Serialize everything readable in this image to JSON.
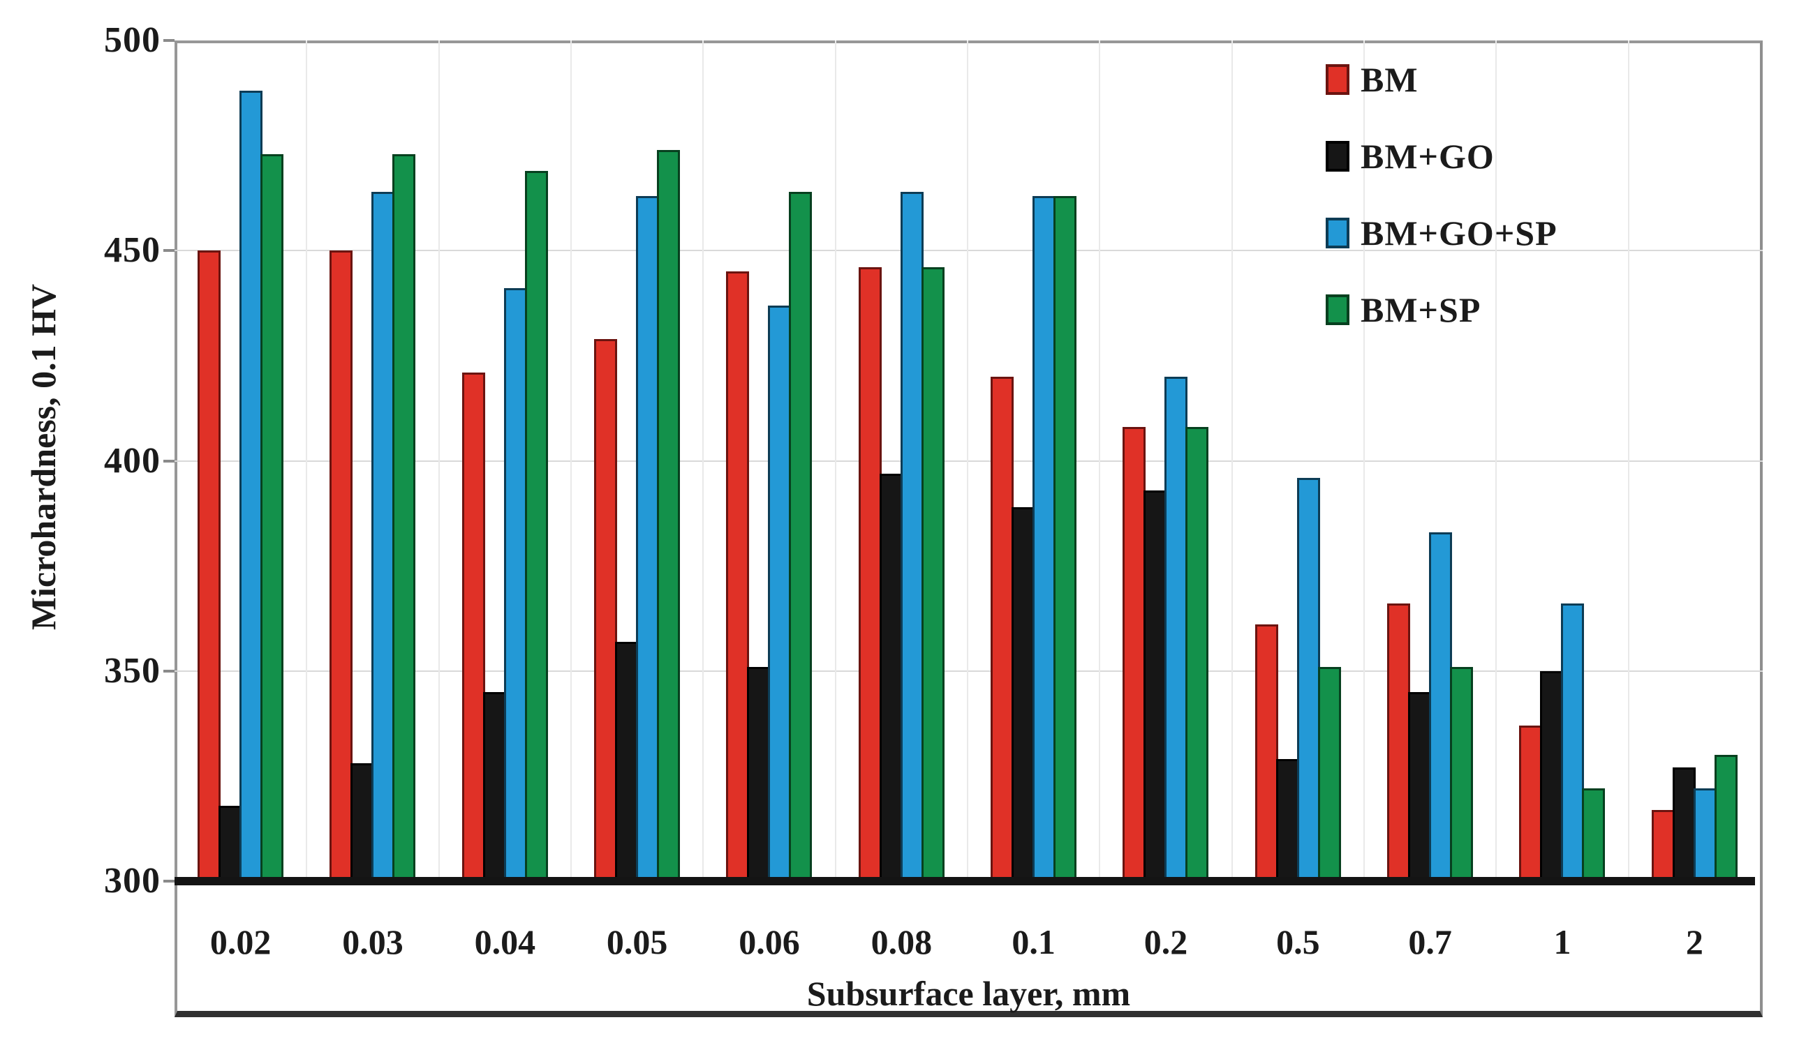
{
  "chart_data": {
    "type": "bar",
    "title": "",
    "xlabel": "Subsurface layer, mm",
    "ylabel": "Microhardness, 0.1 HV",
    "categories": [
      "0.02",
      "0.03",
      "0.04",
      "0.05",
      "0.06",
      "0.08",
      "0.1",
      "0.2",
      "0.5",
      "0.7",
      "1",
      "2"
    ],
    "series": [
      {
        "name": "BM",
        "color": "#e03127",
        "border_color": "#6b1410",
        "values": [
          450,
          450,
          421,
          429,
          445,
          446,
          420,
          408,
          361,
          366,
          337,
          317
        ]
      },
      {
        "name": "BM+GO",
        "color": "#161616",
        "border_color": "#000000",
        "values": [
          318,
          328,
          345,
          357,
          351,
          397,
          389,
          393,
          329,
          345,
          350,
          327
        ]
      },
      {
        "name": "BM+GO+SP",
        "color": "#2399d6",
        "border_color": "#0d3c55",
        "values": [
          488,
          464,
          441,
          463,
          437,
          464,
          463,
          420,
          396,
          383,
          366,
          322
        ]
      },
      {
        "name": "BM+SP",
        "color": "#13914b",
        "border_color": "#07401f",
        "values": [
          473,
          473,
          469,
          474,
          464,
          446,
          463,
          408,
          351,
          351,
          322,
          330
        ]
      }
    ],
    "ylim": [
      300,
      500
    ],
    "yticks": [
      300,
      350,
      400,
      450,
      500
    ],
    "grid": "horizontal and vertical light gray gridlines",
    "legend_position": "top-right inside plot",
    "plot_colors": {
      "hgrid": "#d9d9d9",
      "vgrid": "#e9e9e9",
      "frame": "#979797",
      "baseline": "#141414",
      "text": "#1b1b1b",
      "background": "#ffffff"
    }
  }
}
